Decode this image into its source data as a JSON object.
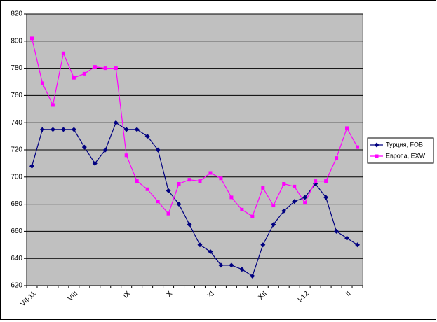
{
  "chart_data": {
    "type": "line",
    "categories": [
      "VII-11",
      null,
      null,
      null,
      "VIII",
      null,
      null,
      null,
      null,
      "IX",
      null,
      null,
      null,
      "X",
      null,
      null,
      null,
      "XI",
      null,
      null,
      null,
      null,
      "XII",
      null,
      null,
      null,
      "I-12",
      null,
      null,
      null,
      "II",
      null
    ],
    "series": [
      {
        "name": "Турция, FOB",
        "color": "#000080",
        "marker": "diamond",
        "values": [
          708,
          735,
          735,
          735,
          735,
          722,
          710,
          720,
          740,
          735,
          735,
          730,
          720,
          690,
          680,
          665,
          650,
          645,
          635,
          635,
          632,
          627,
          650,
          665,
          675,
          682,
          685,
          695,
          685,
          660,
          655,
          650
        ]
      },
      {
        "name": "Европа, EXW",
        "color": "#ff00ff",
        "marker": "square",
        "values": [
          802,
          769,
          753,
          791,
          773,
          776,
          781,
          780,
          780,
          716,
          697,
          691,
          682,
          673,
          695,
          698,
          697,
          703,
          699,
          685,
          676,
          671,
          692,
          679,
          695,
          693,
          681,
          697,
          697,
          714,
          736,
          722
        ]
      }
    ],
    "ylim": [
      620,
      820
    ],
    "yticks": [
      620,
      640,
      660,
      680,
      700,
      720,
      740,
      760,
      780,
      800,
      820
    ],
    "grid": true,
    "legend": "right"
  }
}
